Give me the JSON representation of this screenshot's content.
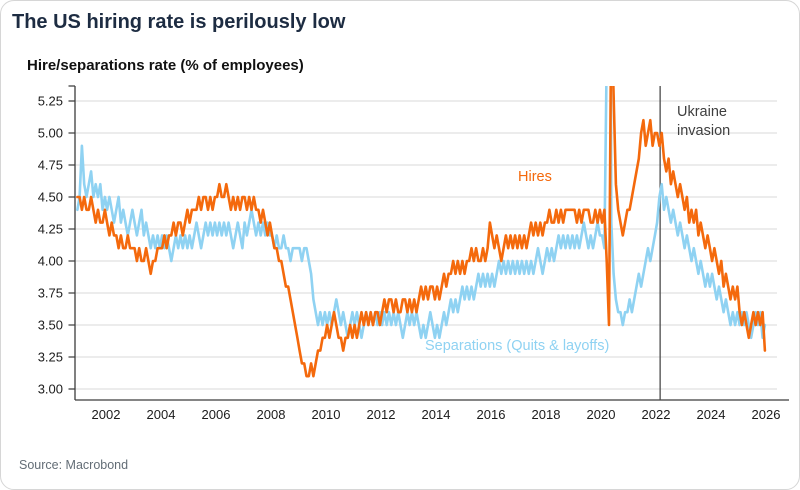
{
  "title": "The US hiring rate is perilously low",
  "source": "Source: Macrobond",
  "colors": {
    "hires": "#F4690C",
    "separations": "#8FD2F2",
    "title_text": "#1d2c42",
    "annotation_text": "#3f3f3f",
    "grid": "#d9d9d9",
    "axis": "#3c3c3c",
    "event_line": "#4a4a4a",
    "tick_text": "#1c1c1c"
  },
  "chart_data": {
    "type": "line",
    "title": "Hire/separations rate (% of employees)",
    "frequency": "monthly",
    "x_start": {
      "year": 2000,
      "month": 12
    },
    "x_ticks": [
      2002,
      2004,
      2006,
      2008,
      2010,
      2012,
      2014,
      2016,
      2018,
      2020,
      2022,
      2024,
      2026
    ],
    "y_ticks": [
      5.25,
      5.0,
      4.75,
      4.5,
      4.25,
      4.0,
      3.75,
      3.5,
      3.25,
      3.0
    ],
    "ylim": [
      2.91,
      5.37
    ],
    "grid": "horizontal",
    "legend_position": "inline-labels",
    "annotation": {
      "text": "Ukraine invasion",
      "x": 2022.15
    },
    "series": [
      {
        "name": "Hires",
        "color": "#F4690C",
        "values": [
          4.5,
          4.5,
          4.4,
          4.5,
          4.4,
          4.4,
          4.5,
          4.4,
          4.3,
          4.4,
          4.3,
          4.3,
          4.4,
          4.3,
          4.2,
          4.3,
          4.2,
          4.2,
          4.1,
          4.2,
          4.1,
          4.1,
          4.2,
          4.1,
          4.1,
          4.1,
          4.0,
          4.1,
          4.0,
          4.0,
          4.1,
          4.0,
          3.9,
          4.0,
          4.0,
          4.1,
          4.1,
          4.1,
          4.2,
          4.1,
          4.2,
          4.2,
          4.3,
          4.2,
          4.3,
          4.3,
          4.2,
          4.3,
          4.4,
          4.3,
          4.4,
          4.4,
          4.4,
          4.5,
          4.4,
          4.5,
          4.5,
          4.4,
          4.5,
          4.4,
          4.5,
          4.5,
          4.6,
          4.5,
          4.5,
          4.6,
          4.5,
          4.4,
          4.5,
          4.4,
          4.5,
          4.4,
          4.5,
          4.5,
          4.4,
          4.5,
          4.4,
          4.5,
          4.4,
          4.4,
          4.3,
          4.4,
          4.3,
          4.2,
          4.3,
          4.2,
          4.1,
          4.1,
          4.0,
          4.0,
          3.9,
          3.8,
          3.8,
          3.7,
          3.6,
          3.5,
          3.4,
          3.3,
          3.2,
          3.2,
          3.1,
          3.1,
          3.2,
          3.1,
          3.2,
          3.3,
          3.3,
          3.4,
          3.4,
          3.5,
          3.4,
          3.5,
          3.6,
          3.5,
          3.4,
          3.4,
          3.3,
          3.4,
          3.4,
          3.5,
          3.4,
          3.5,
          3.4,
          3.5,
          3.6,
          3.5,
          3.6,
          3.5,
          3.6,
          3.5,
          3.6,
          3.6,
          3.5,
          3.6,
          3.7,
          3.6,
          3.7,
          3.7,
          3.6,
          3.7,
          3.6,
          3.6,
          3.7,
          3.7,
          3.6,
          3.7,
          3.6,
          3.7,
          3.6,
          3.7,
          3.8,
          3.7,
          3.8,
          3.7,
          3.8,
          3.8,
          3.7,
          3.8,
          3.7,
          3.8,
          3.9,
          3.8,
          3.9,
          3.9,
          4.0,
          3.9,
          4.0,
          3.9,
          4.0,
          3.9,
          4.0,
          4.0,
          4.1,
          4.0,
          4.1,
          4.0,
          4.0,
          4.1,
          4.0,
          4.1,
          4.3,
          4.2,
          4.1,
          4.2,
          4.1,
          4.0,
          4.1,
          4.2,
          4.1,
          4.2,
          4.1,
          4.2,
          4.1,
          4.2,
          4.1,
          4.2,
          4.1,
          4.2,
          4.3,
          4.2,
          4.3,
          4.2,
          4.3,
          4.2,
          4.3,
          4.3,
          4.4,
          4.3,
          4.3,
          4.4,
          4.3,
          4.4,
          4.3,
          4.4,
          4.4,
          4.4,
          4.4,
          4.4,
          4.3,
          4.4,
          4.3,
          4.4,
          4.4,
          4.4,
          4.3,
          4.3,
          4.4,
          4.3,
          4.4,
          4.3,
          4.4,
          4.0,
          3.5,
          6.0,
          5.3,
          4.6,
          4.4,
          4.3,
          4.2,
          4.3,
          4.4,
          4.4,
          4.5,
          4.6,
          4.7,
          4.8,
          5.0,
          5.1,
          4.9,
          5.0,
          5.1,
          4.9,
          5.0,
          5.0,
          4.9,
          5.0,
          4.8,
          4.7,
          4.8,
          4.6,
          4.7,
          4.6,
          4.5,
          4.6,
          4.5,
          4.4,
          4.5,
          4.3,
          4.4,
          4.3,
          4.4,
          4.2,
          4.3,
          4.2,
          4.1,
          4.2,
          4.1,
          4.0,
          4.1,
          4.0,
          3.9,
          4.0,
          3.8,
          3.9,
          3.8,
          3.7,
          3.8,
          3.7,
          3.8,
          3.6,
          3.5,
          3.6,
          3.5,
          3.4,
          3.5,
          3.6,
          3.5,
          3.6,
          3.5,
          3.6,
          3.3
        ]
      },
      {
        "name": "Separations (Quits & layoffs)",
        "color": "#8FD2F2",
        "values": [
          4.4,
          4.5,
          4.9,
          4.6,
          4.5,
          4.6,
          4.7,
          4.5,
          4.6,
          4.5,
          4.6,
          4.4,
          4.5,
          4.4,
          4.5,
          4.4,
          4.3,
          4.4,
          4.5,
          4.3,
          4.4,
          4.3,
          4.2,
          4.3,
          4.4,
          4.3,
          4.2,
          4.3,
          4.4,
          4.2,
          4.3,
          4.2,
          4.1,
          4.2,
          4.1,
          4.2,
          4.1,
          4.2,
          4.1,
          4.2,
          4.1,
          4.0,
          4.1,
          4.2,
          4.1,
          4.2,
          4.1,
          4.2,
          4.1,
          4.2,
          4.1,
          4.2,
          4.3,
          4.2,
          4.1,
          4.2,
          4.3,
          4.2,
          4.3,
          4.2,
          4.3,
          4.2,
          4.3,
          4.2,
          4.3,
          4.2,
          4.3,
          4.2,
          4.1,
          4.2,
          4.3,
          4.2,
          4.1,
          4.3,
          4.2,
          4.3,
          4.4,
          4.3,
          4.2,
          4.3,
          4.2,
          4.3,
          4.2,
          4.3,
          4.2,
          4.2,
          4.1,
          4.2,
          4.1,
          4.1,
          4.2,
          4.1,
          4.1,
          4.0,
          4.1,
          4.1,
          4.1,
          4.1,
          4.0,
          4.1,
          4.1,
          4.0,
          3.9,
          3.7,
          3.6,
          3.5,
          3.6,
          3.5,
          3.6,
          3.5,
          3.6,
          3.5,
          3.6,
          3.7,
          3.6,
          3.5,
          3.6,
          3.5,
          3.4,
          3.5,
          3.6,
          3.5,
          3.6,
          3.5,
          3.4,
          3.5,
          3.6,
          3.5,
          3.6,
          3.5,
          3.6,
          3.5,
          3.6,
          3.5,
          3.6,
          3.5,
          3.6,
          3.5,
          3.6,
          3.5,
          3.6,
          3.5,
          3.4,
          3.5,
          3.6,
          3.5,
          3.6,
          3.5,
          3.6,
          3.5,
          3.4,
          3.5,
          3.4,
          3.5,
          3.6,
          3.5,
          3.4,
          3.5,
          3.4,
          3.5,
          3.6,
          3.5,
          3.6,
          3.7,
          3.6,
          3.7,
          3.6,
          3.7,
          3.8,
          3.7,
          3.8,
          3.7,
          3.8,
          3.7,
          3.8,
          3.9,
          3.8,
          3.9,
          3.8,
          3.9,
          3.8,
          3.9,
          3.8,
          3.9,
          4.0,
          3.9,
          4.0,
          3.9,
          4.0,
          3.9,
          4.0,
          3.9,
          4.0,
          3.9,
          4.0,
          3.9,
          4.0,
          3.9,
          4.0,
          3.9,
          4.0,
          4.1,
          4.0,
          3.9,
          4.0,
          4.1,
          4.0,
          4.1,
          4.0,
          4.1,
          4.2,
          4.1,
          4.2,
          4.1,
          4.2,
          4.1,
          4.2,
          4.1,
          4.2,
          4.1,
          4.2,
          4.3,
          4.2,
          4.1,
          4.2,
          4.1,
          4.2,
          4.3,
          4.2,
          4.2,
          4.1,
          5.6,
          9.9,
          4.3,
          3.9,
          3.7,
          3.6,
          3.6,
          3.5,
          3.6,
          3.6,
          3.7,
          3.6,
          3.7,
          3.8,
          3.9,
          3.8,
          3.9,
          4.0,
          4.1,
          4.0,
          4.1,
          4.2,
          4.3,
          4.5,
          4.6,
          4.4,
          4.5,
          4.4,
          4.3,
          4.4,
          4.3,
          4.2,
          4.3,
          4.2,
          4.1,
          4.2,
          4.1,
          4.0,
          4.1,
          4.0,
          3.9,
          4.0,
          3.9,
          3.8,
          3.9,
          3.8,
          3.9,
          3.8,
          3.7,
          3.8,
          3.7,
          3.6,
          3.7,
          3.6,
          3.5,
          3.6,
          3.5,
          3.6,
          3.5,
          3.6,
          3.5,
          3.6,
          3.5,
          3.4,
          3.5,
          3.6,
          3.5,
          3.6,
          3.4,
          3.5
        ]
      }
    ]
  }
}
